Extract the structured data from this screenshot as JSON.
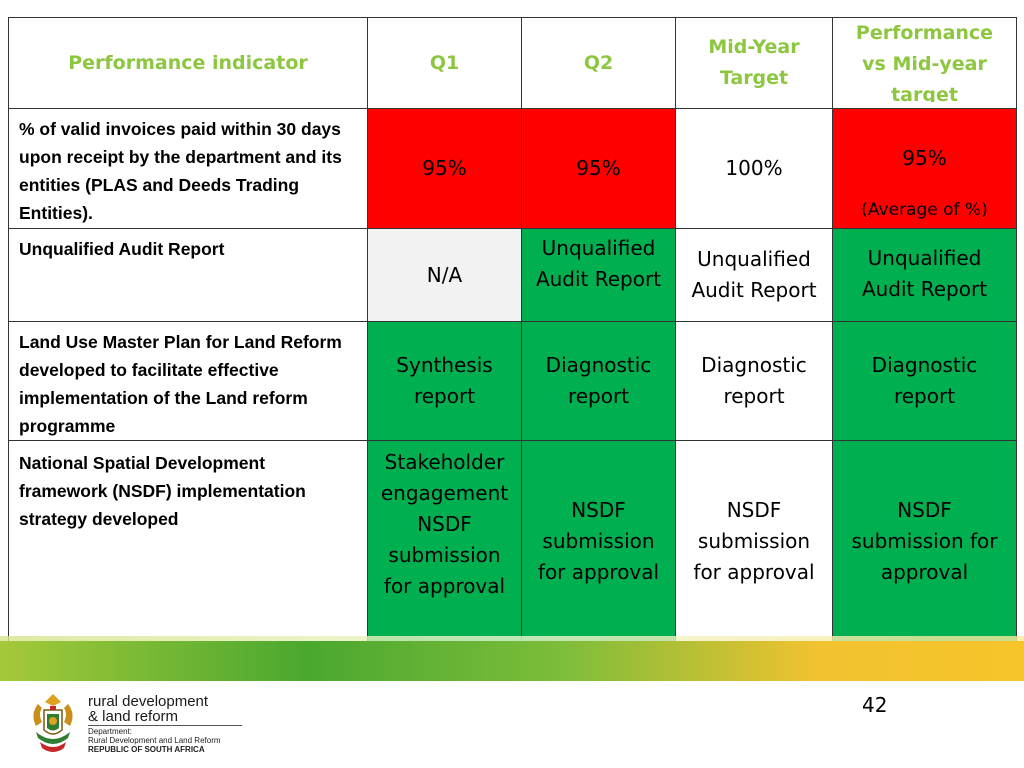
{
  "table": {
    "headers": [
      "Performance indicator",
      "Q1",
      "Q2",
      "Mid-Year Target",
      "Performance vs Mid-year target"
    ],
    "rows": [
      {
        "indicator": "% of valid invoices paid within 30 days upon receipt by the department and its entities (PLAS and Deeds Trading Entities).",
        "q1": "95%",
        "q2": "95%",
        "target": "100%",
        "performance": "95%",
        "performance_note": "(Average of %)"
      },
      {
        "indicator": "Unqualified Audit Report",
        "q1": "N/A",
        "q2": "Unqualified Audit Report",
        "target": "Unqualified Audit Report",
        "performance": "Unqualified Audit Report"
      },
      {
        "indicator": "Land Use Master Plan for Land Reform developed to facilitate effective implementation of the Land reform programme",
        "q1": "Synthesis report",
        "q2": "Diagnostic report",
        "target": "Diagnostic report",
        "performance": "Diagnostic report"
      },
      {
        "indicator": "National Spatial Development framework (NSDF) implementation strategy developed",
        "q1_line1": "Stakeholder engagement",
        "q1_line2": "NSDF submission for approval",
        "q2": "NSDF submission for approval",
        "target": "NSDF submission for approval",
        "performance": "NSDF submission for approval"
      }
    ]
  },
  "colors": {
    "header_text": "#8dc63f",
    "status_red": "#ff0000",
    "status_green": "#00b050",
    "status_grey": "#f2f2f2"
  },
  "footer": {
    "page_number": "42",
    "logo_line1": "rural development",
    "logo_line2": "& land reform",
    "dept_label": "Department:",
    "dept_name": "Rural Development and Land Reform",
    "republic": "REPUBLIC OF SOUTH AFRICA",
    "crest_icon": "coat-of-arms-icon"
  }
}
